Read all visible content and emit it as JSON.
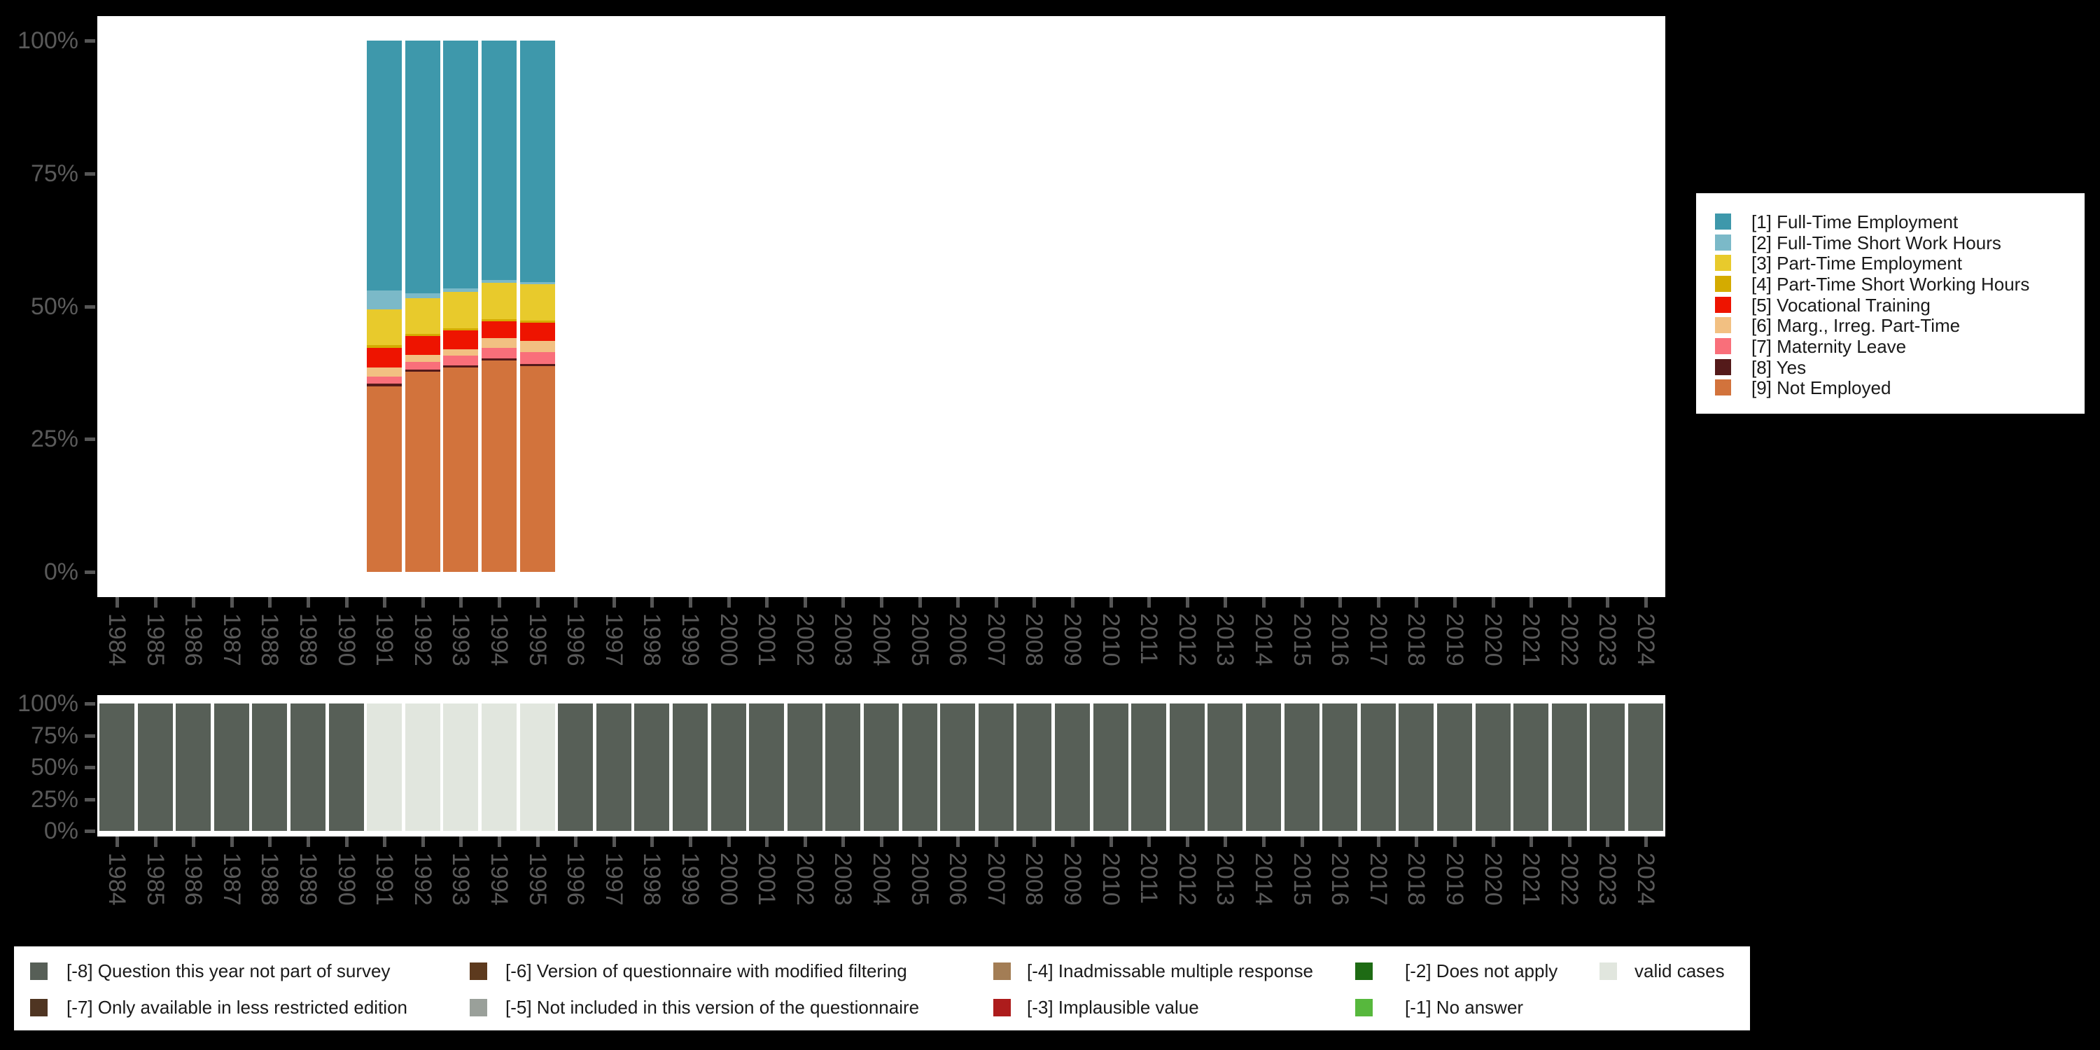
{
  "figure": {
    "background": "#000000",
    "plot_background": "#ffffff",
    "axis_label_color": "#5a5a5a",
    "axis_tick_color": "#565656",
    "legend_text_color": "#1a1a1a"
  },
  "years": [
    "1984",
    "1985",
    "1986",
    "1987",
    "1988",
    "1989",
    "1990",
    "1991",
    "1992",
    "1993",
    "1994",
    "1995",
    "1996",
    "1997",
    "1998",
    "1999",
    "2000",
    "2001",
    "2002",
    "2003",
    "2004",
    "2005",
    "2006",
    "2007",
    "2008",
    "2009",
    "2010",
    "2011",
    "2012",
    "2013",
    "2014",
    "2015",
    "2016",
    "2017",
    "2018",
    "2019",
    "2020",
    "2021",
    "2022",
    "2023",
    "2024"
  ],
  "colors": {
    "cat1": "#3e98ab",
    "cat2": "#7bb9c8",
    "cat3": "#e8ca2c",
    "cat4": "#d4ab00",
    "cat5": "#ee1400",
    "cat6": "#f2c082",
    "cat7": "#f96f7a",
    "cat8": "#541a1a",
    "cat9": "#d2733c",
    "m8": "#575f57",
    "m7": "#4f3522",
    "m6": "#5d3a1e",
    "m5": "#9aa09a",
    "m4": "#a37d55",
    "m3": "#ad1c1c",
    "m2": "#1e6b14",
    "m1": "#57b83d",
    "valid": "#e1e6de"
  },
  "chart_data": [
    {
      "type": "bar",
      "variant": "stacked-percent",
      "title": "",
      "xlabel": "",
      "ylabel": "",
      "ylim": [
        0,
        100
      ],
      "ytick_labels": [
        "0%",
        "25%",
        "50%",
        "75%",
        "100%"
      ],
      "xtick_labels_rotated": true,
      "legend_position": "right",
      "years_with_data": [
        "1991",
        "1992",
        "1993",
        "1994",
        "1995"
      ],
      "series": [
        {
          "name": "[1] Full-Time Employment",
          "color_key": "cat1",
          "values": [
            47.0,
            47.6,
            46.7,
            45.1,
            45.4
          ]
        },
        {
          "name": "[2] Full-Time Short Work Hours",
          "color_key": "cat2",
          "values": [
            3.6,
            0.9,
            0.6,
            0.5,
            0.4
          ]
        },
        {
          "name": "[3] Part-Time Employment",
          "color_key": "cat3",
          "values": [
            6.7,
            6.7,
            6.8,
            6.8,
            6.9
          ]
        },
        {
          "name": "[4] Part-Time Short Working Hours",
          "color_key": "cat4",
          "values": [
            0.5,
            0.4,
            0.4,
            0.4,
            0.4
          ]
        },
        {
          "name": "[5] Vocational Training",
          "color_key": "cat5",
          "values": [
            3.7,
            3.6,
            3.6,
            3.2,
            3.4
          ]
        },
        {
          "name": "[6] Marg., Irreg. Part-Time",
          "color_key": "cat6",
          "values": [
            1.7,
            1.3,
            1.2,
            1.9,
            2.1
          ]
        },
        {
          "name": "[7] Maternity Leave",
          "color_key": "cat7",
          "values": [
            1.4,
            1.4,
            1.8,
            1.9,
            2.3
          ]
        },
        {
          "name": "[8] Yes",
          "color_key": "cat8",
          "values": [
            0.5,
            0.4,
            0.4,
            0.4,
            0.4
          ]
        },
        {
          "name": "[9] Not Employed",
          "color_key": "cat9",
          "values": [
            34.9,
            37.7,
            38.5,
            39.8,
            38.7
          ]
        }
      ]
    },
    {
      "type": "bar",
      "variant": "availability-by-year",
      "title": "",
      "ylim": [
        0,
        100
      ],
      "ytick_labels": [
        "0%",
        "25%",
        "50%",
        "75%",
        "100%"
      ],
      "bar_height_percent": 100,
      "values_by_year": [
        "m8",
        "m8",
        "m8",
        "m8",
        "m8",
        "m8",
        "m8",
        "valid",
        "valid",
        "valid",
        "valid",
        "valid",
        "m8",
        "m8",
        "m8",
        "m8",
        "m8",
        "m8",
        "m8",
        "m8",
        "m8",
        "m8",
        "m8",
        "m8",
        "m8",
        "m8",
        "m8",
        "m8",
        "m8",
        "m8",
        "m8",
        "m8",
        "m8",
        "m8",
        "m8",
        "m8",
        "m8",
        "m8",
        "m8",
        "m8",
        "m8"
      ]
    }
  ],
  "main_legend": {
    "items": [
      {
        "label": "[1] Full-Time Employment",
        "color_key": "cat1"
      },
      {
        "label": "[2] Full-Time Short Work Hours",
        "color_key": "cat2"
      },
      {
        "label": "[3] Part-Time Employment",
        "color_key": "cat3"
      },
      {
        "label": "[4] Part-Time Short Working Hours",
        "color_key": "cat4"
      },
      {
        "label": "[5] Vocational Training",
        "color_key": "cat5"
      },
      {
        "label": "[6] Marg., Irreg. Part-Time",
        "color_key": "cat6"
      },
      {
        "label": "[7] Maternity Leave",
        "color_key": "cat7"
      },
      {
        "label": "[8] Yes",
        "color_key": "cat8"
      },
      {
        "label": "[9] Not Employed",
        "color_key": "cat9"
      }
    ]
  },
  "missing_legend": {
    "columns": [
      {
        "items": [
          {
            "label": "[-8] Question this year not part of survey",
            "color_key": "m8"
          },
          {
            "label": "[-7] Only available in less restricted edition",
            "color_key": "m7"
          }
        ]
      },
      {
        "items": [
          {
            "label": "[-6] Version of questionnaire with modified filtering",
            "color_key": "m6"
          },
          {
            "label": "[-5] Not included in this version of the questionnaire",
            "color_key": "m5"
          }
        ]
      },
      {
        "items": [
          {
            "label": "[-4] Inadmissable multiple response",
            "color_key": "m4"
          },
          {
            "label": "[-3] Implausible value",
            "color_key": "m3"
          }
        ]
      },
      {
        "items": [
          {
            "label": "[-2] Does not apply",
            "color_key": "m2"
          },
          {
            "label": "[-1] No answer",
            "color_key": "m1"
          }
        ]
      },
      {
        "items": [
          {
            "label": "valid cases",
            "color_key": "valid"
          }
        ]
      }
    ]
  }
}
